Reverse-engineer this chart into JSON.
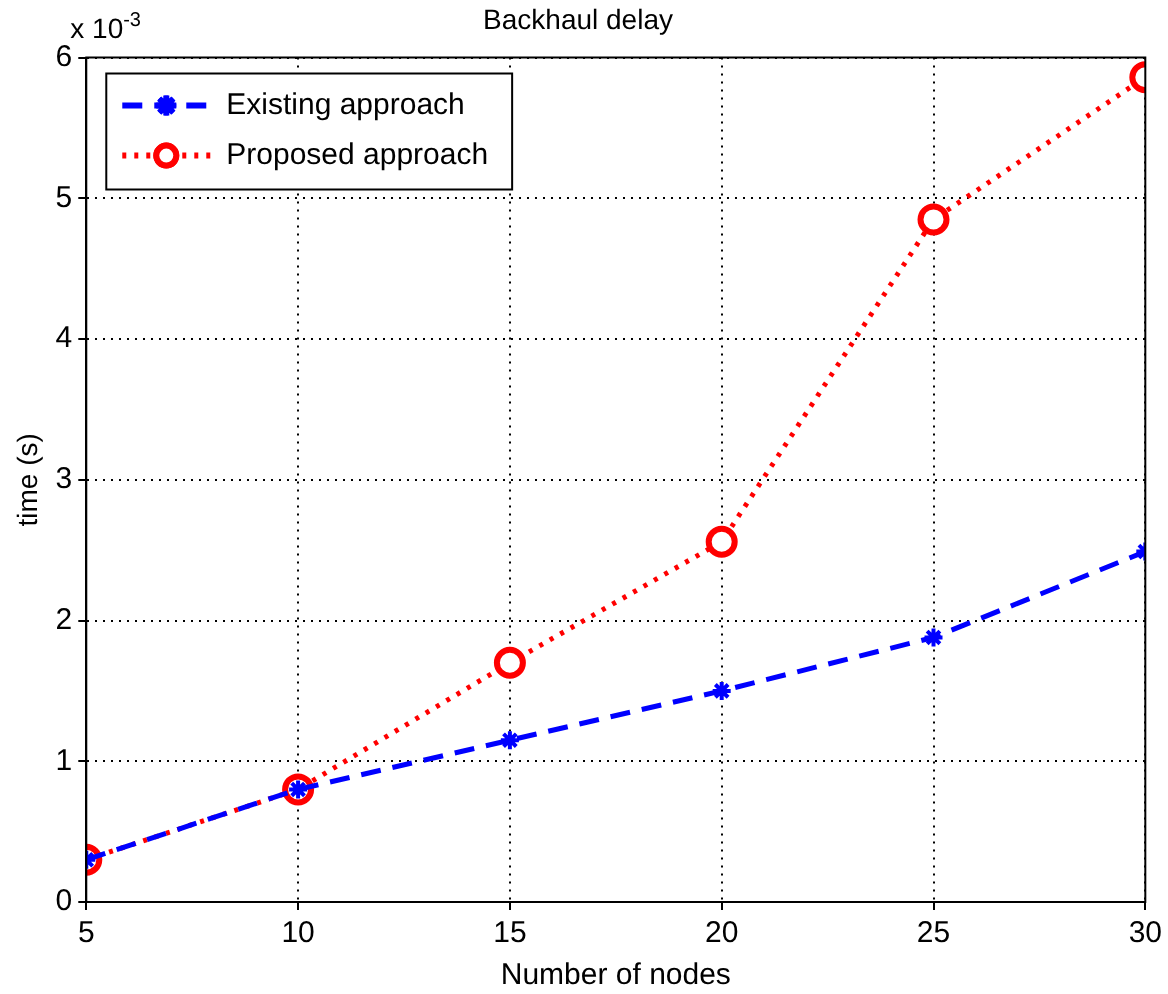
{
  "chart_data": {
    "type": "line",
    "title": "Backhaul delay",
    "xlabel": "Number of nodes",
    "ylabel": "time (s)",
    "annotations": [
      "x 10$^{-3}$"
    ],
    "x": [
      5,
      10,
      15,
      20,
      25,
      30
    ],
    "series": [
      {
        "name": "Existing approach",
        "color": "#0000ff",
        "values": [
          0.3,
          0.8,
          1.15,
          1.5,
          1.88,
          2.49
        ],
        "line_style": "dashed",
        "marker": "cross"
      },
      {
        "name": "Proposed approach",
        "color": "#ff0000",
        "values": [
          0.3,
          0.8,
          1.7,
          2.56,
          4.85,
          5.86
        ],
        "line_style": "dotted",
        "marker": "circle"
      }
    ],
    "xlim": [
      5,
      30
    ],
    "xticks": [
      5,
      10,
      15,
      20,
      25,
      30
    ],
    "ylim": [
      0,
      6
    ],
    "yticks": [
      0,
      1,
      2,
      3,
      4,
      5,
      6
    ],
    "grid": true,
    "legend": "top left"
  }
}
